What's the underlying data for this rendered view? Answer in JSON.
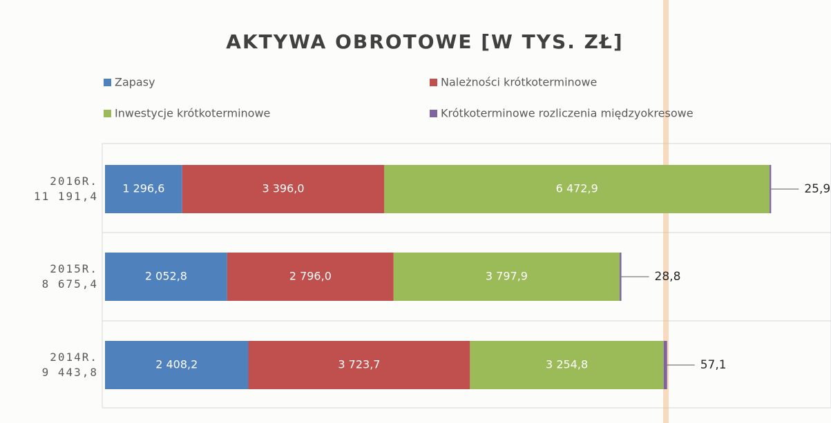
{
  "chart_data": {
    "type": "stacked-barh",
    "title": "AKTYWA OBROTOWE [W TYS. ZŁ]",
    "categories": [
      "2016R.\n11 191,4",
      "2015R.\n8 675,4",
      "2014R.\n9 443,8"
    ],
    "series": [
      {
        "name": "Zapasy",
        "color": "#4f81bd",
        "values": [
          1296.6,
          2052.8,
          2408.2
        ],
        "value_labels": [
          "1 296,6",
          "2 052,8",
          "2 408,2"
        ]
      },
      {
        "name": "Należności krótkoterminowe",
        "color": "#c0504d",
        "values": [
          3396.0,
          2796.0,
          3723.7
        ],
        "value_labels": [
          "3 396,0",
          "2 796,0",
          "3 723,7"
        ]
      },
      {
        "name": "Inwestycje krótkoterminowe",
        "color": "#9bbb59",
        "values": [
          6472.9,
          3797.9,
          3254.8
        ],
        "value_labels": [
          "6 472,9",
          "3 797,9",
          "3 254,8"
        ]
      },
      {
        "name": "Krótkoterminowe rozliczenia międzyokresowe",
        "color": "#8064a2",
        "values": [
          25.9,
          28.8,
          57.1
        ],
        "value_labels": [
          "25,9",
          "28,8",
          "57,1"
        ]
      }
    ],
    "xlim": [
      0,
      12000
    ]
  }
}
